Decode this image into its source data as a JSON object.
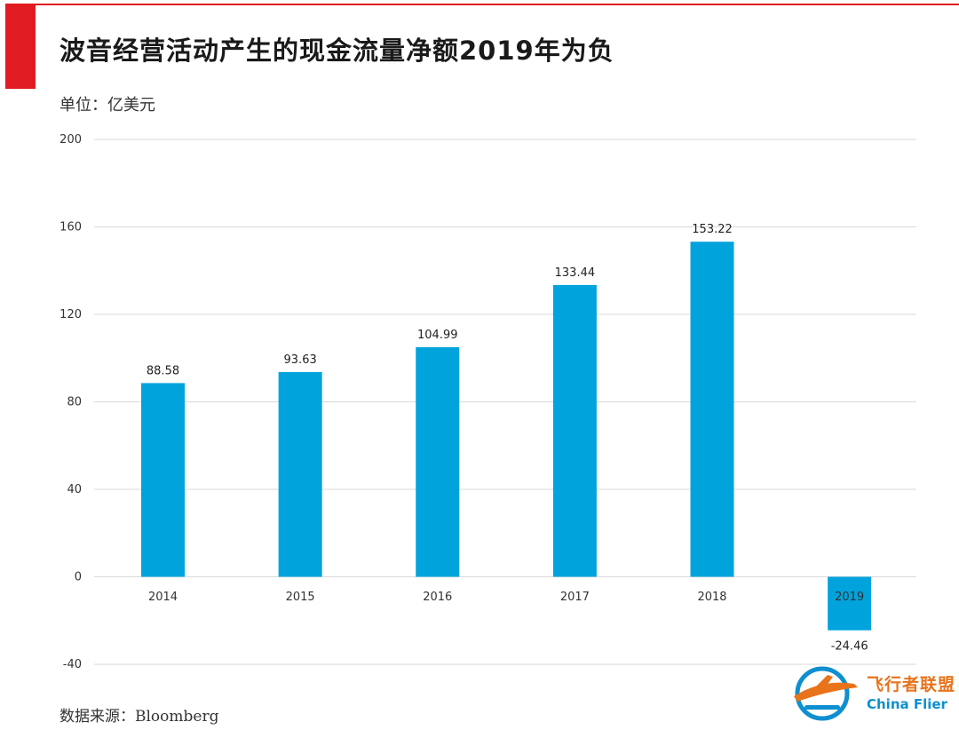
{
  "header": {
    "title": "波音经营活动产生的现金流量净额2019年为负",
    "unit": "单位：亿美元"
  },
  "footer": {
    "source": "数据来源：Bloomberg"
  },
  "logo": {
    "text_cn": "飞行者联盟",
    "text_en": "China Flier"
  },
  "colors": {
    "accent": "#e11b22",
    "bar": "#00a3dc",
    "grid": "#d9d9d9"
  },
  "chart_data": {
    "type": "bar",
    "categories": [
      "2014",
      "2015",
      "2016",
      "2017",
      "2018",
      "2019"
    ],
    "values": [
      88.58,
      93.63,
      104.99,
      133.44,
      153.22,
      -24.46
    ],
    "data_labels": [
      "88.58",
      "93.63",
      "104.99",
      "133.44",
      "153.22",
      "-24.46"
    ],
    "ylim": [
      -40,
      200
    ],
    "yticks": [
      -40,
      0,
      40,
      80,
      120,
      160,
      200
    ],
    "ytick_labels": [
      "-40",
      "0",
      "40",
      "80",
      "120",
      "160",
      "200"
    ],
    "grid": true,
    "legend": "none"
  }
}
